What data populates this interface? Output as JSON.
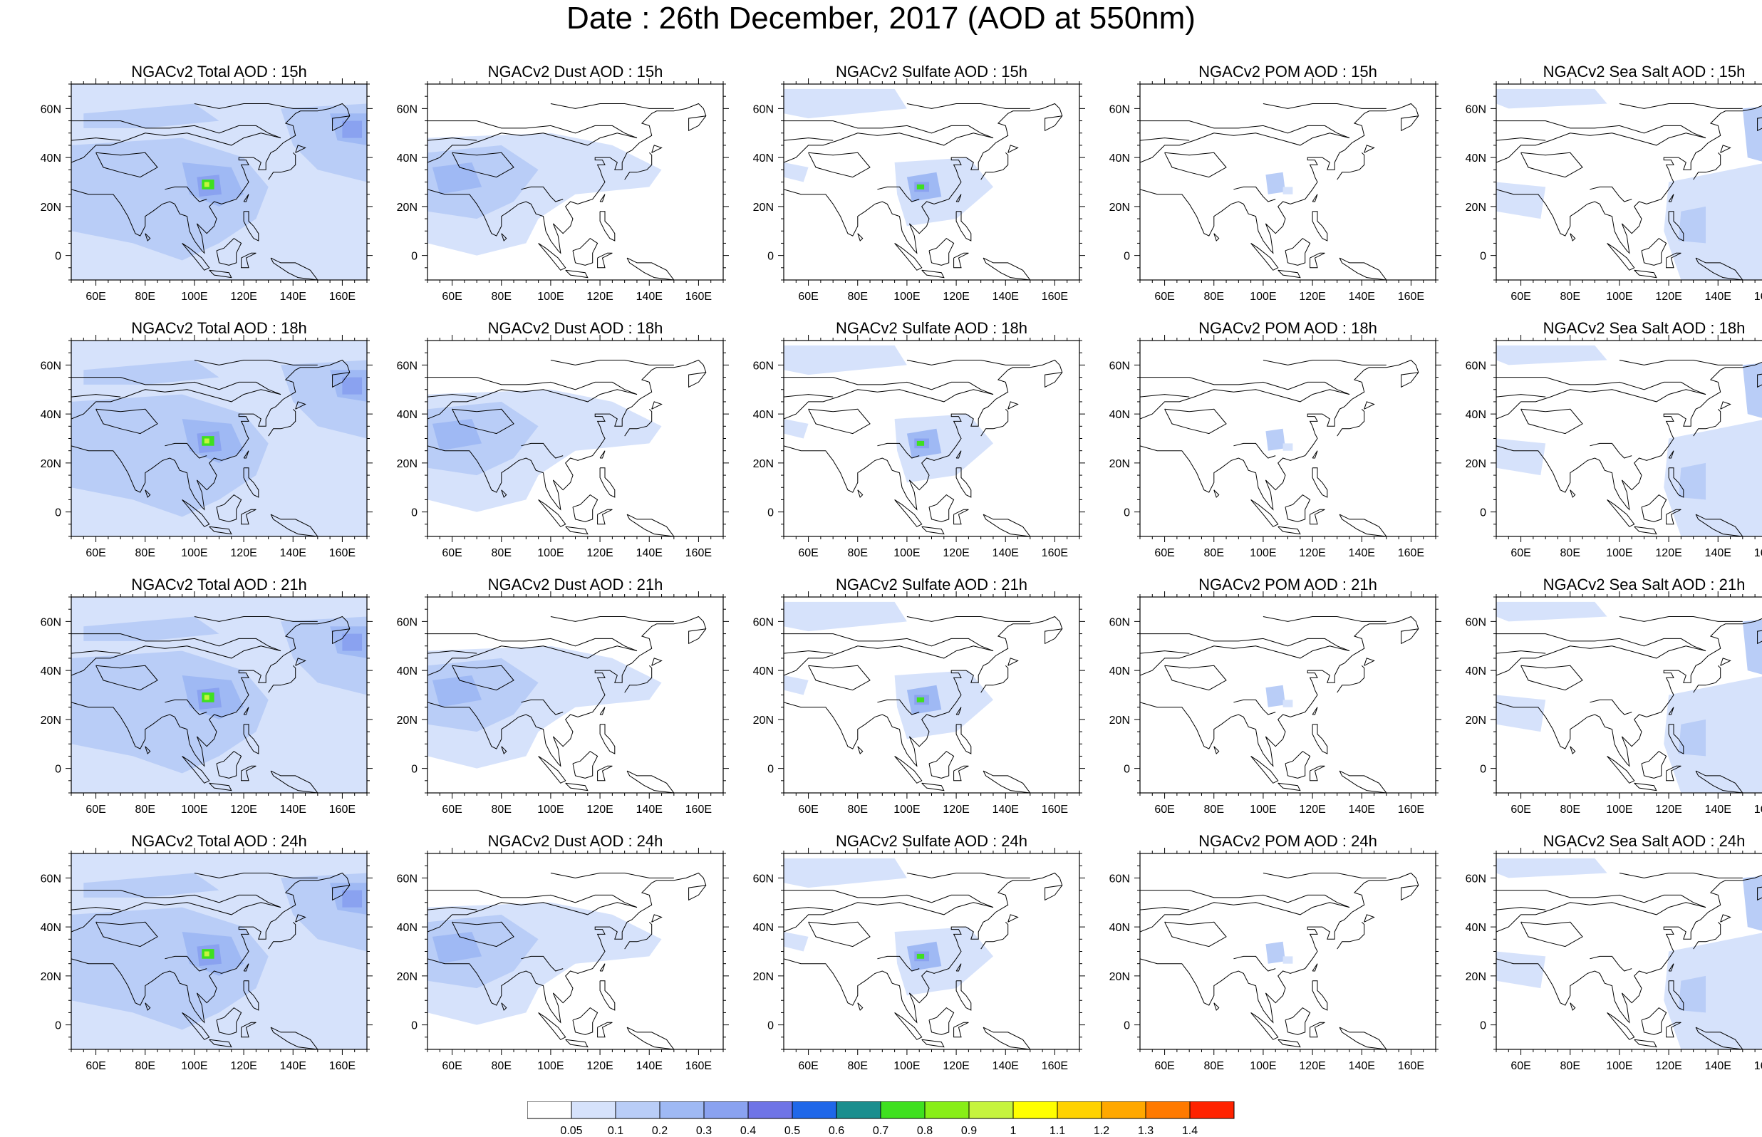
{
  "figure": {
    "title": "Date : 26th December, 2017 (AOD at 550nm)"
  },
  "axes": {
    "lon_ticks": [
      "60E",
      "80E",
      "100E",
      "120E",
      "140E",
      "160E"
    ],
    "lat_ticks": [
      "60N",
      "40N",
      "20N",
      "0"
    ]
  },
  "panels": [
    {
      "title": "NGACv2 Total AOD : 15h",
      "species": "total",
      "hour": 15
    },
    {
      "title": "NGACv2 Dust AOD : 15h",
      "species": "dust",
      "hour": 15
    },
    {
      "title": "NGACv2 Sulfate AOD : 15h",
      "species": "sulfate",
      "hour": 15
    },
    {
      "title": "NGACv2 POM AOD : 15h",
      "species": "pom",
      "hour": 15
    },
    {
      "title": "NGACv2 Sea Salt AOD : 15h",
      "species": "seasalt",
      "hour": 15
    },
    {
      "title": "NGACv2 Total AOD : 18h",
      "species": "total",
      "hour": 18
    },
    {
      "title": "NGACv2 Dust AOD : 18h",
      "species": "dust",
      "hour": 18
    },
    {
      "title": "NGACv2 Sulfate AOD : 18h",
      "species": "sulfate",
      "hour": 18
    },
    {
      "title": "NGACv2 POM AOD : 18h",
      "species": "pom",
      "hour": 18
    },
    {
      "title": "NGACv2 Sea Salt AOD : 18h",
      "species": "seasalt",
      "hour": 18
    },
    {
      "title": "NGACv2 Total AOD : 21h",
      "species": "total",
      "hour": 21
    },
    {
      "title": "NGACv2 Dust AOD : 21h",
      "species": "dust",
      "hour": 21
    },
    {
      "title": "NGACv2 Sulfate AOD : 21h",
      "species": "sulfate",
      "hour": 21
    },
    {
      "title": "NGACv2 POM AOD : 21h",
      "species": "pom",
      "hour": 21
    },
    {
      "title": "NGACv2 Sea Salt AOD : 21h",
      "species": "seasalt",
      "hour": 21
    },
    {
      "title": "NGACv2 Total AOD : 24h",
      "species": "total",
      "hour": 24
    },
    {
      "title": "NGACv2 Dust AOD : 24h",
      "species": "dust",
      "hour": 24
    },
    {
      "title": "NGACv2 Sulfate AOD : 24h",
      "species": "sulfate",
      "hour": 24
    },
    {
      "title": "NGACv2 POM AOD : 24h",
      "species": "pom",
      "hour": 24
    },
    {
      "title": "NGACv2 Sea Salt  AOD : 24h",
      "species": "seasalt",
      "hour": 24
    }
  ],
  "colorbar": {
    "labels": [
      "0.05",
      "0.1",
      "0.2",
      "0.3",
      "0.4",
      "0.5",
      "0.6",
      "0.7",
      "0.8",
      "0.9",
      "1",
      "1.1",
      "1.2",
      "1.3",
      "1.4"
    ],
    "colors": [
      "#ffffff",
      "#d6e2fb",
      "#b9cdf7",
      "#9fb9f4",
      "#8aa2f0",
      "#6f74e6",
      "#1f67e9",
      "#1a8e8e",
      "#3fe01f",
      "#88ee17",
      "#c6f43e",
      "#ffff00",
      "#ffd200",
      "#ffa800",
      "#ff7a00",
      "#ff2200"
    ]
  }
}
